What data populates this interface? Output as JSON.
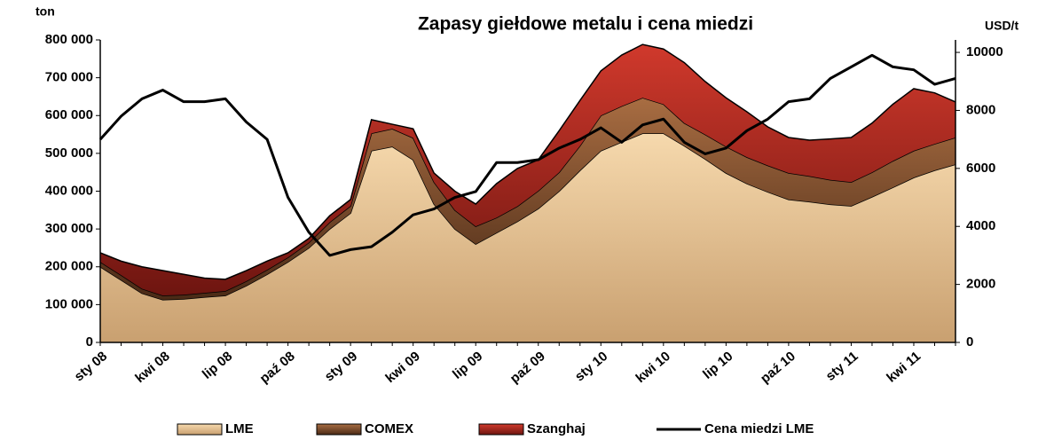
{
  "chart_data": {
    "type": "stacked_area_line",
    "title": "Zapasy giełdowe metalu i cena miedzi",
    "ylabel": "ton",
    "y2label": "USD/t",
    "categories": [
      "sty 08",
      null,
      null,
      "kwi 08",
      null,
      null,
      "lip 08",
      null,
      null,
      "paź 08",
      null,
      null,
      "sty 09",
      null,
      null,
      "kwi 09",
      null,
      null,
      "lip 09",
      null,
      null,
      "paź 09",
      null,
      null,
      "sty 10",
      null,
      null,
      "kwi 10",
      null,
      null,
      "lip 10",
      null,
      null,
      "paź 10",
      null,
      null,
      "sty 11",
      null,
      null,
      "kwi 11",
      null,
      null
    ],
    "series": [
      {
        "name": "LME",
        "color": "#e9c48f",
        "values": [
          200000,
          165000,
          130000,
          113000,
          115000,
          120000,
          124000,
          150000,
          180000,
          213000,
          250000,
          300000,
          342000,
          507000,
          518000,
          483000,
          366000,
          300000,
          260000,
          290000,
          320000,
          354000,
          400000,
          455000,
          507000,
          530000,
          553000,
          553000,
          520000,
          485000,
          448000,
          420000,
          398000,
          378000,
          372000,
          365000,
          361000,
          385000,
          410000,
          436000,
          455000,
          471000
        ]
      },
      {
        "name": "COMEX",
        "color": "#7b4a2b",
        "values": [
          13000,
          13000,
          12000,
          11000,
          11000,
          11000,
          12000,
          12000,
          12000,
          12000,
          14000,
          18000,
          19000,
          46000,
          47000,
          58000,
          58000,
          50000,
          47000,
          40000,
          40000,
          47000,
          50000,
          65000,
          93000,
          95000,
          94000,
          77000,
          60000,
          65000,
          70000,
          70000,
          70000,
          70000,
          68000,
          65000,
          63000,
          65000,
          70000,
          71000,
          70000,
          71000
        ]
      },
      {
        "name": "Szanghaj",
        "color": "#b3261e",
        "values": [
          24000,
          37000,
          58000,
          66000,
          54000,
          39000,
          31000,
          28000,
          23000,
          12000,
          11000,
          17000,
          17000,
          36000,
          12000,
          24000,
          24000,
          50000,
          59000,
          90000,
          100000,
          82000,
          110000,
          120000,
          118000,
          135000,
          141000,
          146000,
          160000,
          140000,
          129000,
          120000,
          102000,
          94000,
          95000,
          108000,
          118000,
          130000,
          150000,
          164000,
          135000,
          94000
        ]
      },
      {
        "name": "Cena miedzi LME",
        "color": "#000000",
        "axis": "y2",
        "values": [
          7000,
          7800,
          8400,
          8700,
          8300,
          8300,
          8400,
          7600,
          7000,
          5000,
          3800,
          3000,
          3200,
          3300,
          3800,
          4400,
          4600,
          5000,
          5200,
          6200,
          6200,
          6300,
          6700,
          7000,
          7400,
          6900,
          7500,
          7700,
          6900,
          6500,
          6700,
          7300,
          7700,
          8300,
          8400,
          9100,
          9500,
          9900,
          9500,
          9400,
          8900,
          9100
        ]
      }
    ],
    "ylim": [
      0,
      800000
    ],
    "yticks": [
      0,
      {
        "value": 100000,
        "label": "100 000"
      },
      {
        "value": 200000,
        "label": "200 000"
      },
      {
        "value": 300000,
        "label": "300 000"
      },
      {
        "value": 400000,
        "label": "400 000"
      },
      {
        "value": 500000,
        "label": "500 000"
      },
      {
        "value": 600000,
        "label": "600 000"
      },
      {
        "value": 700000,
        "label": "700 000"
      },
      {
        "value": 800000,
        "label": "800 000"
      }
    ],
    "y2lim": [
      0,
      10430
    ],
    "y2ticks": [
      0,
      2000,
      4000,
      6000,
      8000,
      10000
    ],
    "legend": "bottom"
  }
}
